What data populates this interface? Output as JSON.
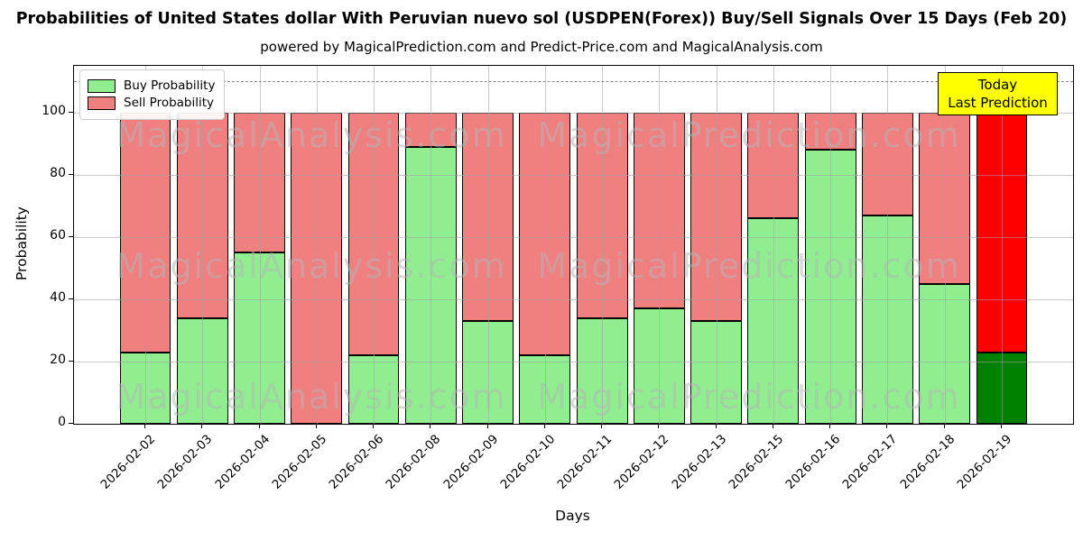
{
  "title": "Probabilities of United States dollar With Peruvian nuevo sol (USDPEN(Forex)) Buy/Sell Signals Over 15 Days (Feb 20)",
  "subtitle": "powered by MagicalPrediction.com and Predict-Price.com and MagicalAnalysis.com",
  "legend": {
    "buy_label": "Buy Probability",
    "sell_label": "Sell Probability"
  },
  "today_box": {
    "line1": "Today",
    "line2": "Last Prediction"
  },
  "axes": {
    "x_label": "Days",
    "y_label": "Probability",
    "y_ticks": [
      0,
      20,
      40,
      60,
      80,
      100
    ]
  },
  "watermarks": {
    "left_text": "MagicalAnalysis.com",
    "right_text": "MagicalPrediction.com"
  },
  "colors": {
    "buy": "#90EE90",
    "sell": "#F08080",
    "today_buy": "#008000",
    "today_sell": "#FF0000",
    "today_box_bg": "#FFFF00",
    "grid": "#a0a0a0",
    "dashed_line": "#8a8a8a"
  },
  "chart_data": {
    "type": "bar",
    "stacked": true,
    "title": "Probabilities of United States dollar With Peruvian nuevo sol (USDPEN(Forex)) Buy/Sell Signals Over 15 Days (Feb 20)",
    "xlabel": "Days",
    "ylabel": "Probability",
    "ylim": [
      0,
      115
    ],
    "grid": true,
    "legend_position": "upper left",
    "dashed_reference_line_y": 110,
    "categories": [
      "2026-02-02",
      "2026-02-03",
      "2026-02-04",
      "2026-02-05",
      "2026-02-06",
      "2026-02-08",
      "2026-02-09",
      "2026-02-10",
      "2026-02-11",
      "2026-02-12",
      "2026-02-13",
      "2026-02-15",
      "2026-02-16",
      "2026-02-17",
      "2026-02-18",
      "2026-02-19"
    ],
    "series": [
      {
        "name": "Buy Probability",
        "color": "#90EE90",
        "values": [
          23,
          34,
          55,
          0,
          22,
          89,
          33,
          22,
          34,
          37,
          33,
          66,
          88,
          67,
          45,
          23
        ]
      },
      {
        "name": "Sell Probability",
        "color": "#F08080",
        "values": [
          77,
          66,
          45,
          100,
          78,
          11,
          67,
          78,
          66,
          63,
          67,
          34,
          12,
          33,
          55,
          77
        ]
      }
    ],
    "today_category": "2026-02-19",
    "today_colors": {
      "buy": "#008000",
      "sell": "#FF0000"
    }
  }
}
